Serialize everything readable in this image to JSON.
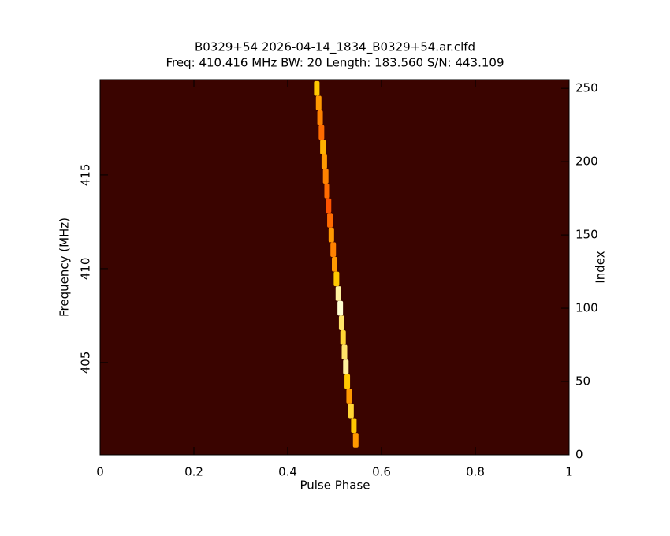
{
  "chart_data": {
    "type": "heatmap",
    "title": "B0329+54 2026-04-14_1834_B0329+54.ar.clfd",
    "subtitle": "Freq: 410.416 MHz BW: 20 Length: 183.560 S/N: 443.109",
    "x_label": "Pulse Phase",
    "y_label": "Frequency (MHz)",
    "y2_label": "Index",
    "x": [
      0.545,
      0.541,
      0.535,
      0.531,
      0.527,
      0.524,
      0.521,
      0.518,
      0.515,
      0.512,
      0.508,
      0.504,
      0.5,
      0.497,
      0.493,
      0.49,
      0.487,
      0.484,
      0.481,
      0.478,
      0.475,
      0.472,
      0.469,
      0.466,
      0.462
    ],
    "y": [
      10,
      20,
      30,
      40,
      50,
      60,
      70,
      80,
      90,
      100,
      110,
      120,
      130,
      140,
      150,
      160,
      170,
      180,
      190,
      200,
      210,
      220,
      230,
      240,
      250
    ],
    "values": [
      0.7,
      0.8,
      0.85,
      0.7,
      0.8,
      0.95,
      0.9,
      0.85,
      0.9,
      1,
      0.95,
      0.8,
      0.7,
      0.65,
      0.7,
      0.6,
      0.55,
      0.6,
      0.65,
      0.7,
      0.75,
      0.6,
      0.65,
      0.7,
      0.8
    ],
    "xlim": [
      0,
      1
    ],
    "xticks": [
      0,
      0.2,
      0.4,
      0.6,
      0.8,
      1
    ],
    "ylim": [
      400.08,
      420.08
    ],
    "yticks": [
      405,
      410,
      415
    ],
    "y2lim": [
      0,
      256
    ],
    "y2ticks": [
      0,
      50,
      100,
      150,
      200,
      250
    ],
    "background": "#3a0400"
  }
}
